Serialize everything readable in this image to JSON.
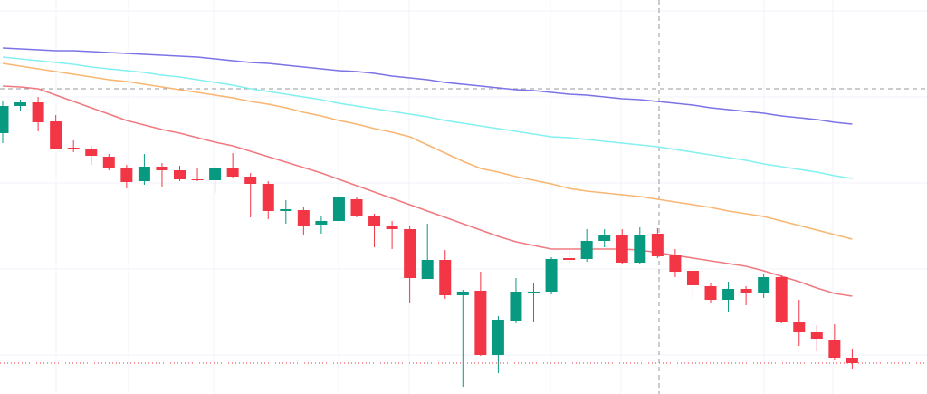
{
  "chart_data": {
    "type": "candlestick",
    "ylim": [
      0,
      435
    ],
    "up_color": "#089981",
    "down_color": "#f23645",
    "open": [
      288,
      318,
      322,
      301,
      272,
      270,
      262,
      249,
      235,
      251,
      247,
      237,
      236,
      249,
      240,
      232,
      202,
      203,
      187,
      191,
      215,
      197,
      186,
      182,
      127,
      148,
      109,
      114,
      43,
      81,
      111,
      113,
      150,
      149,
      169,
      175,
      145,
      177,
      153,
      136,
      119,
      104,
      116,
      111,
      129,
      80,
      68,
      60,
      40
    ],
    "high": [
      323,
      325,
      328,
      308,
      280,
      274,
      265,
      253,
      265,
      255,
      252,
      250,
      251,
      266,
      244,
      235,
      214,
      206,
      196,
      221,
      217,
      199,
      191,
      185,
      188,
      159,
      115,
      135,
      86,
      128,
      123,
      151,
      159,
      182,
      182,
      182,
      184,
      183,
      160,
      137,
      122,
      124,
      119,
      132,
      131,
      104,
      76,
      77,
      50
    ],
    "low": [
      277,
      313,
      290,
      270,
      267,
      253,
      247,
      227,
      231,
      229,
      235,
      235,
      222,
      238,
      195,
      193,
      188,
      175,
      177,
      189,
      195,
      162,
      160,
      101,
      127,
      105,
      8,
      42,
      23,
      78,
      80,
      110,
      143,
      146,
      162,
      144,
      143,
      150,
      129,
      105,
      101,
      91,
      98,
      106,
      78,
      53,
      48,
      37,
      28
    ],
    "close": [
      318,
      322,
      300,
      271,
      270,
      263,
      249,
      234,
      251,
      247,
      237,
      236,
      249,
      240,
      232,
      202,
      204,
      186,
      191,
      217,
      196,
      185,
      182,
      128,
      148,
      109,
      113,
      43,
      82,
      113,
      113,
      149,
      148,
      169,
      176,
      145,
      176,
      152,
      135,
      120,
      104,
      116,
      111,
      129,
      80,
      68,
      61,
      40,
      34
    ],
    "series": [
      {
        "color": "#7b73e6",
        "values": [
          382,
          381,
          380,
          379,
          379,
          378,
          377,
          376,
          375,
          374,
          373,
          372,
          370,
          368,
          366,
          365,
          363,
          361,
          359,
          357,
          356,
          354,
          351,
          349,
          347,
          344,
          342,
          340,
          338,
          336,
          335,
          333,
          331,
          330,
          328,
          326,
          325,
          323,
          321,
          319,
          316,
          314,
          312,
          310,
          307,
          305,
          303,
          300,
          298
        ]
      },
      {
        "color": "#84f0ef",
        "values": [
          372,
          370,
          368,
          366,
          364,
          361,
          359,
          357,
          355,
          352,
          350,
          347,
          344,
          341,
          337,
          334,
          331,
          328,
          325,
          321,
          318,
          315,
          312,
          309,
          306,
          302,
          299,
          296,
          293,
          290,
          287,
          284,
          283,
          281,
          279,
          277,
          275,
          273,
          270,
          267,
          264,
          261,
          258,
          254,
          251,
          248,
          245,
          241,
          238
        ]
      },
      {
        "color": "#f8b672",
        "values": [
          365,
          362,
          359,
          356,
          353,
          350,
          347,
          345,
          342,
          339,
          336,
          333,
          330,
          327,
          323,
          320,
          316,
          311,
          307,
          302,
          298,
          293,
          289,
          284,
          275,
          266,
          257,
          249,
          245,
          240,
          236,
          232,
          227,
          224,
          222,
          220,
          218,
          215,
          212,
          209,
          206,
          202,
          199,
          196,
          191,
          186,
          181,
          176,
          171
        ]
      },
      {
        "color": "#f07a80",
        "values": [
          340,
          339,
          337,
          330,
          323,
          316,
          309,
          302,
          297,
          292,
          288,
          283,
          278,
          274,
          268,
          262,
          256,
          250,
          244,
          237,
          230,
          223,
          216,
          209,
          202,
          195,
          188,
          181,
          174,
          168,
          164,
          160,
          160,
          160,
          160,
          160,
          159,
          156,
          153,
          150,
          147,
          144,
          141,
          136,
          130,
          124,
          117,
          111,
          108
        ]
      }
    ]
  }
}
